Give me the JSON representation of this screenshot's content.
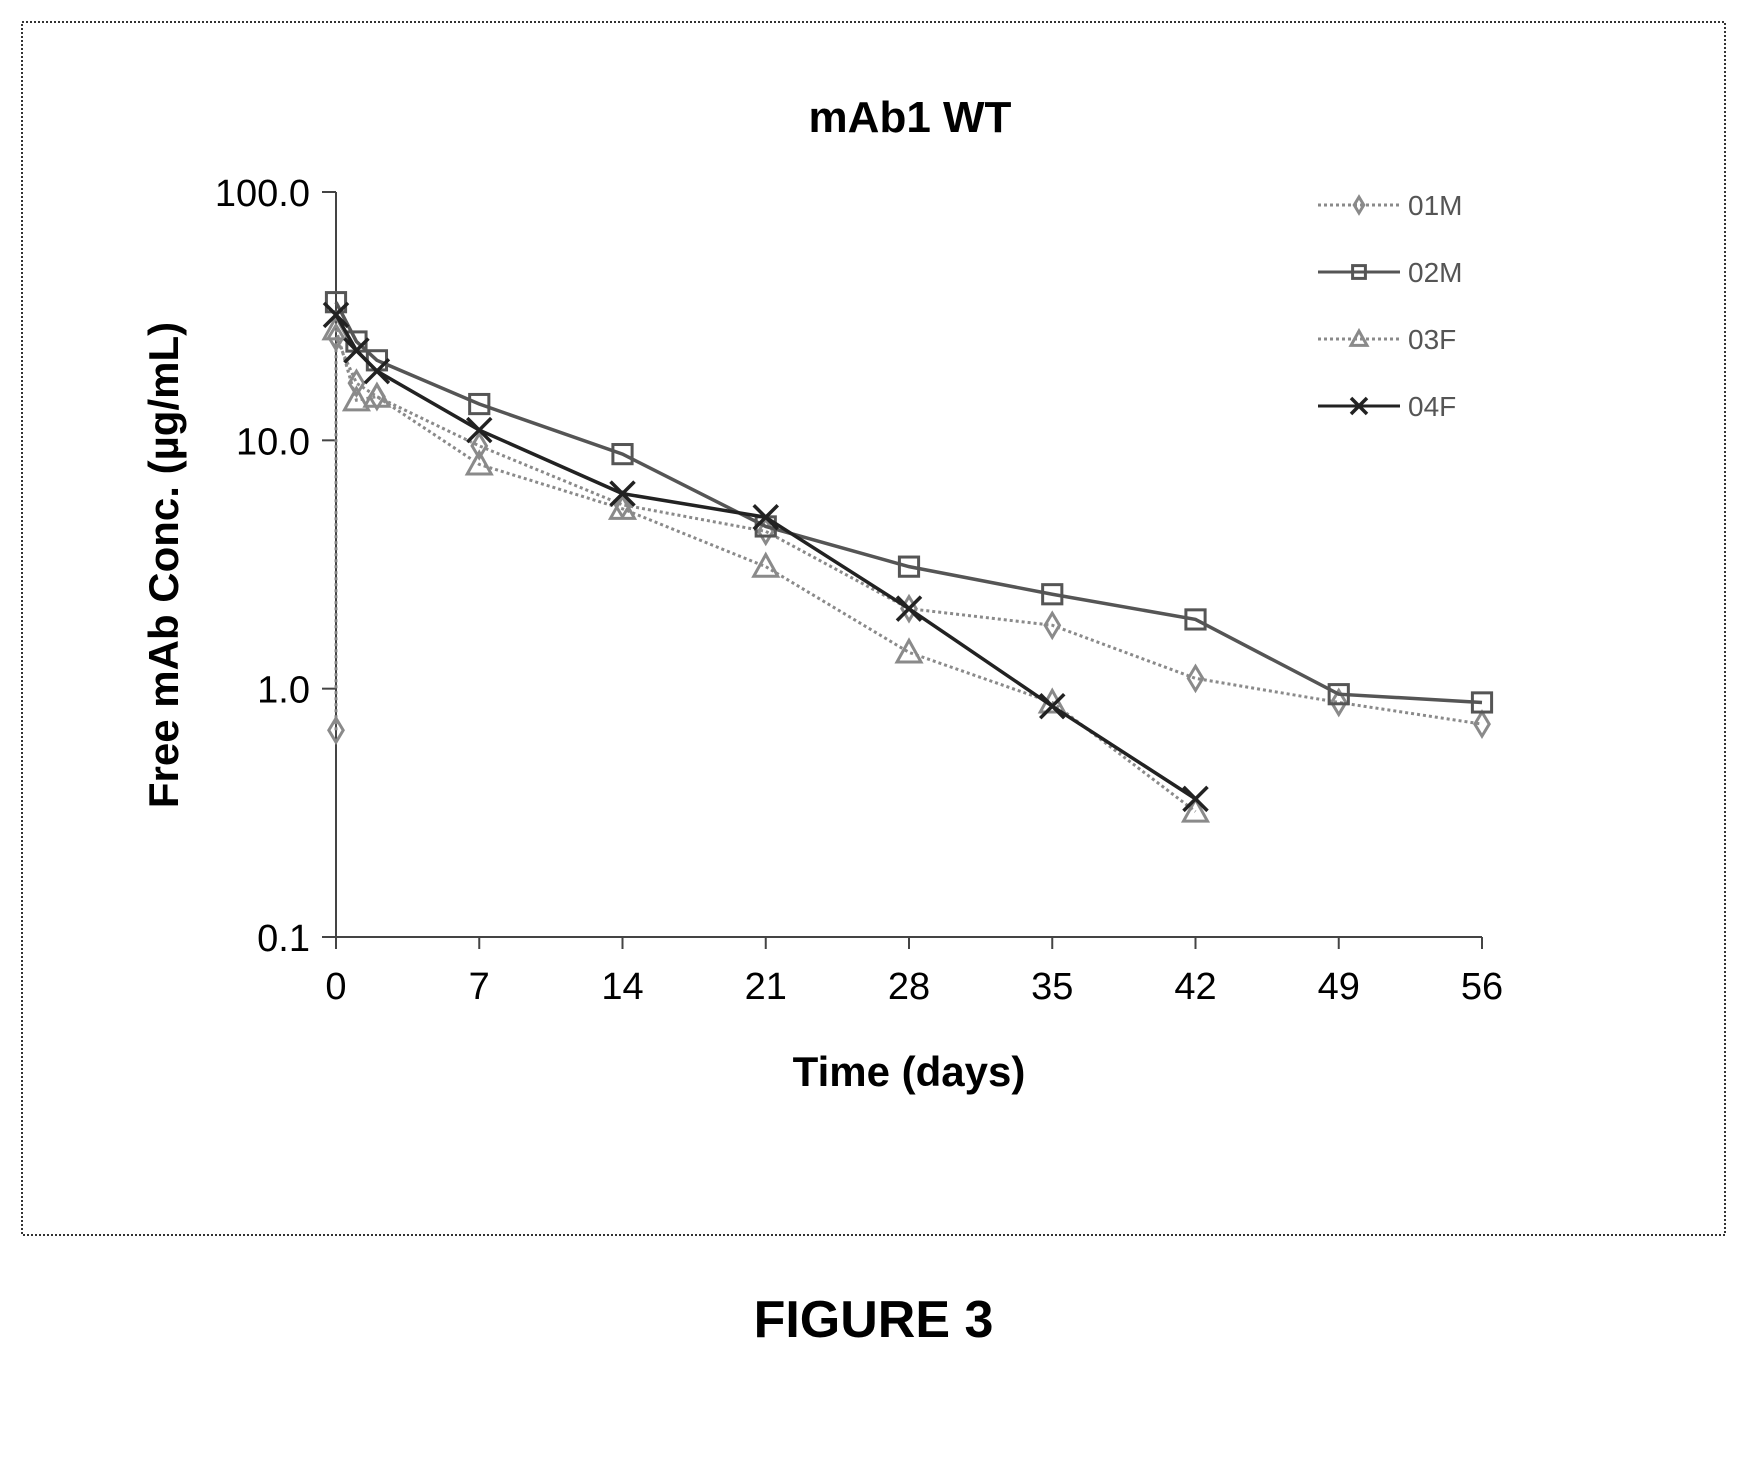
{
  "figure_label": "FIGURE 3",
  "chart_data": {
    "type": "line",
    "title": "mAb1 WT",
    "xlabel": "Time (days)",
    "ylabel": "Free mAb Conc. (µg/mL)",
    "xlim": [
      0,
      56
    ],
    "ylim": [
      0.1,
      100
    ],
    "yscale": "log",
    "xticks": [
      0,
      7,
      14,
      21,
      28,
      35,
      42,
      49,
      56
    ],
    "xtick_labels": [
      "0",
      "7",
      "14",
      "21",
      "28",
      "35",
      "42",
      "49",
      "56"
    ],
    "yticks": [
      0.1,
      1,
      10,
      100
    ],
    "ytick_labels": [
      "0.1",
      "1.0",
      "10.0",
      "100.0"
    ],
    "grid": false,
    "legend_position": "top-right",
    "series": [
      {
        "name": "01M",
        "marker": "diamond",
        "color": "#8a8a8a",
        "dash": "dotted",
        "points": [
          [
            0,
            0.68
          ],
          [
            0,
            26
          ],
          [
            1,
            17
          ],
          [
            2,
            15
          ],
          [
            7,
            9.5
          ],
          [
            14,
            5.5
          ],
          [
            21,
            4.3
          ],
          [
            28,
            2.1
          ],
          [
            35,
            1.8
          ],
          [
            42,
            1.1
          ],
          [
            49,
            0.88
          ],
          [
            56,
            0.72
          ]
        ]
      },
      {
        "name": "02M",
        "marker": "square",
        "color": "#555555",
        "dash": "solid",
        "points": [
          [
            0,
            36
          ],
          [
            1,
            25
          ],
          [
            2,
            21
          ],
          [
            7,
            14
          ],
          [
            14,
            8.8
          ],
          [
            21,
            4.5
          ],
          [
            28,
            3.1
          ],
          [
            35,
            2.4
          ],
          [
            42,
            1.9
          ],
          [
            49,
            0.95
          ],
          [
            56,
            0.88
          ]
        ]
      },
      {
        "name": "03F",
        "marker": "triangle",
        "color": "#8a8a8a",
        "dash": "dotted",
        "points": [
          [
            0,
            28
          ],
          [
            1,
            14.5
          ],
          [
            2,
            15
          ],
          [
            7,
            8
          ],
          [
            14,
            5.3
          ],
          [
            21,
            3.1
          ],
          [
            28,
            1.4
          ],
          [
            35,
            0.88
          ],
          [
            42,
            0.32
          ]
        ]
      },
      {
        "name": "04F",
        "marker": "x",
        "color": "#222222",
        "dash": "solid",
        "points": [
          [
            0,
            32
          ],
          [
            1,
            23
          ],
          [
            2,
            19
          ],
          [
            7,
            11
          ],
          [
            14,
            6.1
          ],
          [
            21,
            4.9
          ],
          [
            28,
            2.1
          ],
          [
            35,
            0.85
          ],
          [
            42,
            0.36
          ]
        ]
      }
    ]
  }
}
